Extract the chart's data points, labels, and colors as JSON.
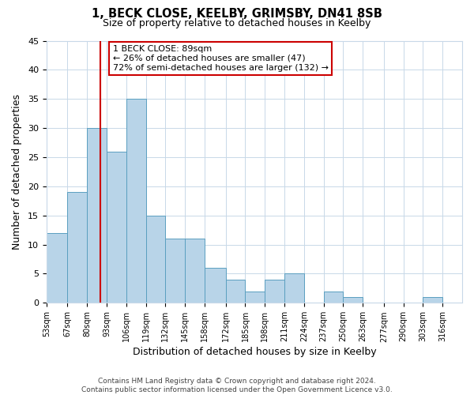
{
  "title1": "1, BECK CLOSE, KEELBY, GRIMSBY, DN41 8SB",
  "title2": "Size of property relative to detached houses in Keelby",
  "xlabel": "Distribution of detached houses by size in Keelby",
  "ylabel": "Number of detached properties",
  "bar_edges": [
    53,
    67,
    80,
    93,
    106,
    119,
    132,
    145,
    158,
    172,
    185,
    198,
    211,
    224,
    237,
    250,
    263,
    277,
    290,
    303,
    316
  ],
  "bar_heights": [
    12,
    19,
    30,
    26,
    35,
    15,
    11,
    11,
    6,
    4,
    2,
    4,
    5,
    0,
    2,
    1,
    0,
    0,
    0,
    1
  ],
  "bar_color": "#b8d4e8",
  "bar_edge_color": "#5a9fc0",
  "property_line_x": 89,
  "property_line_color": "#cc0000",
  "annotation_line1": "1 BECK CLOSE: 89sqm",
  "annotation_line2": "← 26% of detached houses are smaller (47)",
  "annotation_line3": "72% of semi-detached houses are larger (132) →",
  "annotation_box_color": "#ffffff",
  "annotation_box_edge": "#cc0000",
  "xlim_left": 53,
  "xlim_right": 329,
  "ylim_top": 45,
  "tick_labels": [
    "53sqm",
    "67sqm",
    "80sqm",
    "93sqm",
    "106sqm",
    "119sqm",
    "132sqm",
    "145sqm",
    "158sqm",
    "172sqm",
    "185sqm",
    "198sqm",
    "211sqm",
    "224sqm",
    "237sqm",
    "250sqm",
    "263sqm",
    "277sqm",
    "290sqm",
    "303sqm",
    "316sqm"
  ],
  "tick_positions": [
    53,
    67,
    80,
    93,
    106,
    119,
    132,
    145,
    158,
    172,
    185,
    198,
    211,
    224,
    237,
    250,
    263,
    277,
    290,
    303,
    316
  ],
  "yticks": [
    0,
    5,
    10,
    15,
    20,
    25,
    30,
    35,
    40,
    45
  ],
  "footer_text": "Contains HM Land Registry data © Crown copyright and database right 2024.\nContains public sector information licensed under the Open Government Licence v3.0.",
  "background_color": "#ffffff",
  "grid_color": "#c8d8e8"
}
